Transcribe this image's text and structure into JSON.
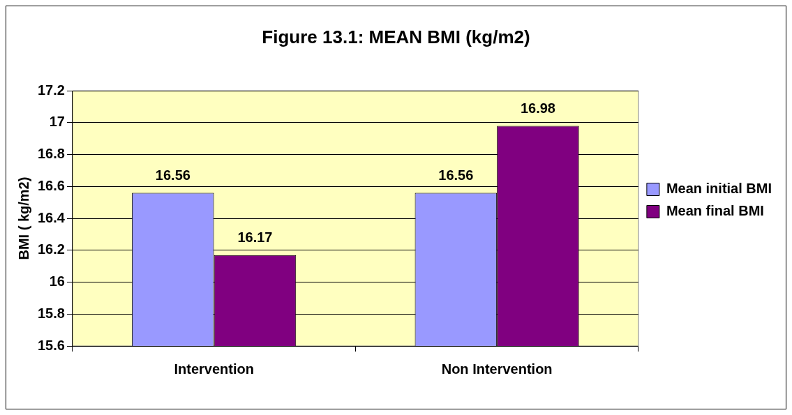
{
  "chart_data": {
    "type": "bar",
    "title": "Figure 13.1: MEAN BMI (kg/m2)",
    "ylabel": "BMI ( kg/m2)",
    "categories": [
      "Intervention",
      "Non Intervention"
    ],
    "series": [
      {
        "name": "Mean initial BMI",
        "color": "#9999ff",
        "values": [
          16.56,
          16.56
        ]
      },
      {
        "name": "Mean final BMI",
        "color": "#800080",
        "values": [
          16.17,
          16.98
        ]
      }
    ],
    "ylim": [
      15.6,
      17.2
    ],
    "yticks": [
      15.6,
      15.8,
      16,
      16.2,
      16.4,
      16.6,
      16.8,
      17,
      17.2
    ],
    "grid": "y",
    "legend": "right",
    "data_labels": true
  }
}
